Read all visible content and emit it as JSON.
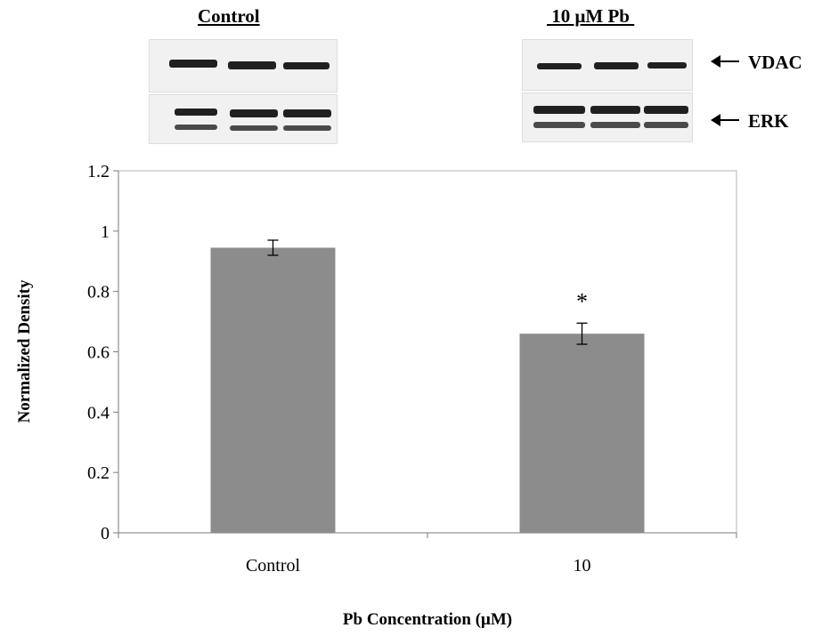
{
  "blots": {
    "control_title": "Control",
    "treated_title": " 10 μM Pb ",
    "proteins": [
      "VDAC",
      "ERK"
    ]
  },
  "chart_data": {
    "type": "bar",
    "categories": [
      "Control",
      "10"
    ],
    "values": [
      0.945,
      0.66
    ],
    "error": [
      0.025,
      0.035
    ],
    "annotations": [
      "",
      "*"
    ],
    "xlabel": "Pb Concentration (μM)",
    "ylabel": "Normalized Density",
    "ylim": [
      0,
      1.2
    ],
    "yticks": [
      "0",
      "0.2",
      "0.4",
      "0.6",
      "0.8",
      "1",
      "1.2"
    ],
    "bar_color": "#8c8c8c",
    "grid": false
  }
}
